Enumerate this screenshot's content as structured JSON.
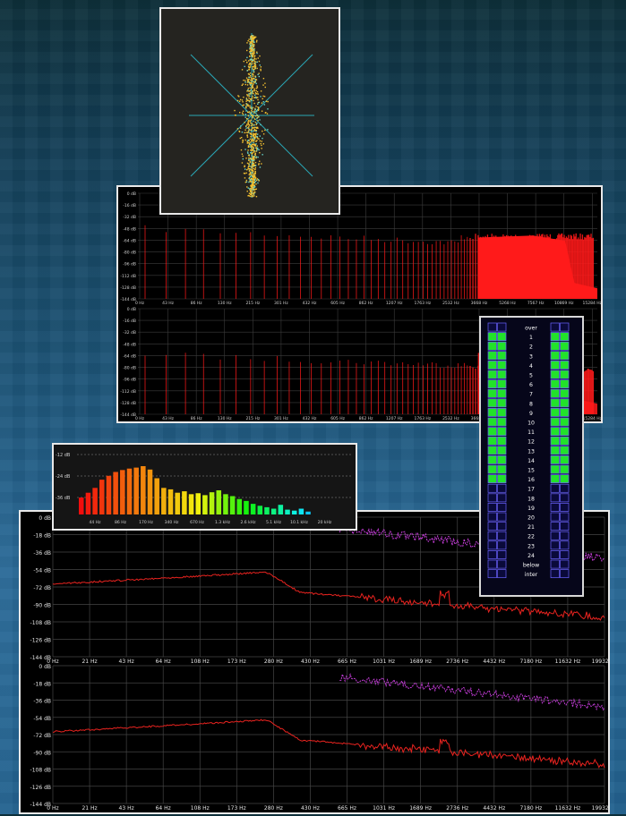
{
  "spectrum": {
    "db_labels": [
      "0 dB",
      "-16 dB",
      "-32 dB",
      "-48 dB",
      "-64 dB",
      "-80 dB",
      "-96 dB",
      "-112 dB",
      "-128 dB",
      "-144 dB"
    ],
    "freq_labels": [
      "0 Hz",
      "43 Hz",
      "86 Hz",
      "130 Hz",
      "215 Hz",
      "301 Hz",
      "432 Hz",
      "605 Hz",
      "862 Hz",
      "1207 Hz",
      "1763 Hz",
      "2532 Hz",
      "3668 Hz",
      "5268 Hz",
      "7567 Hz",
      "10869 Hz",
      "15284 Hz"
    ],
    "color": "#ff1a1a"
  },
  "octave": {
    "db_labels": [
      "-12 dB",
      "-24 dB",
      "-36 dB"
    ],
    "freq_labels": [
      "44 Hz",
      "86 Hz",
      "170 Hz",
      "340 Hz",
      "670 Hz",
      "1.3 kHz",
      "2.6 kHz",
      "5.1 kHz",
      "10.1 kHz",
      "20 kHz"
    ],
    "bar_levels": [
      0.35,
      0.45,
      0.55,
      0.72,
      0.8,
      0.88,
      0.92,
      0.95,
      0.97,
      1.0,
      0.93,
      0.75,
      0.55,
      0.52,
      0.45,
      0.48,
      0.42,
      0.44,
      0.4,
      0.46,
      0.5,
      0.42,
      0.38,
      0.32,
      0.28,
      0.22,
      0.18,
      0.15,
      0.12,
      0.2,
      0.1,
      0.08,
      0.12,
      0.06
    ]
  },
  "meter": {
    "scale": [
      "over",
      "1",
      "2",
      "3",
      "4",
      "5",
      "6",
      "7",
      "8",
      "9",
      "10",
      "11",
      "12",
      "13",
      "14",
      "15",
      "16",
      "17",
      "18",
      "19",
      "20",
      "21",
      "22",
      "23",
      "24",
      "below",
      "inter"
    ],
    "lit_rows": 16
  },
  "bottom_spectrum": {
    "db_labels": [
      "0 dB",
      "-18 dB",
      "-36 dB",
      "-54 dB",
      "-72 dB",
      "-90 dB",
      "-108 dB",
      "-126 dB",
      "-144 dB"
    ],
    "freq_labels": [
      "0 Hz",
      "21 Hz",
      "43 Hz",
      "64 Hz",
      "108 Hz",
      "173 Hz",
      "280 Hz",
      "430 Hz",
      "665 Hz",
      "1031 Hz",
      "1689 Hz",
      "2736 Hz",
      "4432 Hz",
      "7180 Hz",
      "11632 Hz",
      "19932 Hz"
    ]
  },
  "colors": {
    "red": "#e8231f",
    "magenta": "#c43cd8",
    "green": "#22e22a",
    "grid": "#5a5a5a",
    "panel": "#000000"
  }
}
